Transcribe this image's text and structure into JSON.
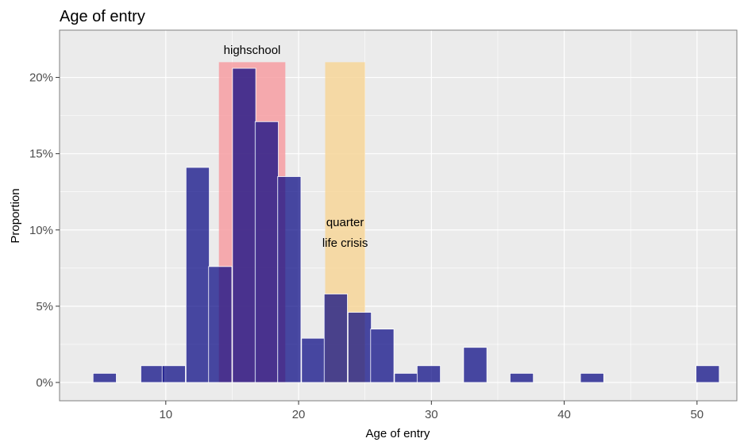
{
  "chart_data": {
    "type": "bar",
    "title": "Age of entry",
    "xlabel": "Age of entry",
    "ylabel": "Proportion",
    "xlim": [
      2,
      53
    ],
    "ylim": [
      -1.2,
      23.1
    ],
    "bin_width": 1.75,
    "x_ticks": [
      10,
      20,
      30,
      40,
      50
    ],
    "x_tick_labels": [
      "10",
      "20",
      "30",
      "40",
      "50"
    ],
    "y_ticks": [
      0,
      5,
      10,
      15,
      20
    ],
    "y_tick_labels": [
      "0%",
      "5%",
      "10%",
      "15%",
      "20%"
    ],
    "grid": true,
    "bars": [
      {
        "x": 5.4,
        "value": 0.6
      },
      {
        "x": 9.0,
        "value": 1.1
      },
      {
        "x": 10.6,
        "value": 1.1
      },
      {
        "x": 12.4,
        "value": 14.1
      },
      {
        "x": 14.1,
        "value": 7.6
      },
      {
        "x": 15.9,
        "value": 20.6
      },
      {
        "x": 17.6,
        "value": 17.1
      },
      {
        "x": 19.3,
        "value": 13.5
      },
      {
        "x": 21.1,
        "value": 2.9
      },
      {
        "x": 22.8,
        "value": 5.8
      },
      {
        "x": 24.6,
        "value": 4.6
      },
      {
        "x": 26.3,
        "value": 3.5
      },
      {
        "x": 28.1,
        "value": 0.6
      },
      {
        "x": 29.8,
        "value": 1.1
      },
      {
        "x": 33.3,
        "value": 2.3
      },
      {
        "x": 36.8,
        "value": 0.6
      },
      {
        "x": 42.1,
        "value": 0.6
      },
      {
        "x": 50.8,
        "value": 1.1
      }
    ],
    "bar_color": "#000080",
    "shaded_regions": [
      {
        "xmin": 14,
        "xmax": 19,
        "ymax": 21,
        "color": "#f8999d",
        "opacity": 0.8,
        "label_lines": [
          "highschool"
        ]
      },
      {
        "xmin": 22,
        "xmax": 25,
        "ymax": 21,
        "color": "#f7d594",
        "opacity": 0.8,
        "label_lines": [
          "quarter",
          "life crisis"
        ]
      }
    ],
    "panel_background": "#ebebeb",
    "grid_color": "#ffffff"
  }
}
